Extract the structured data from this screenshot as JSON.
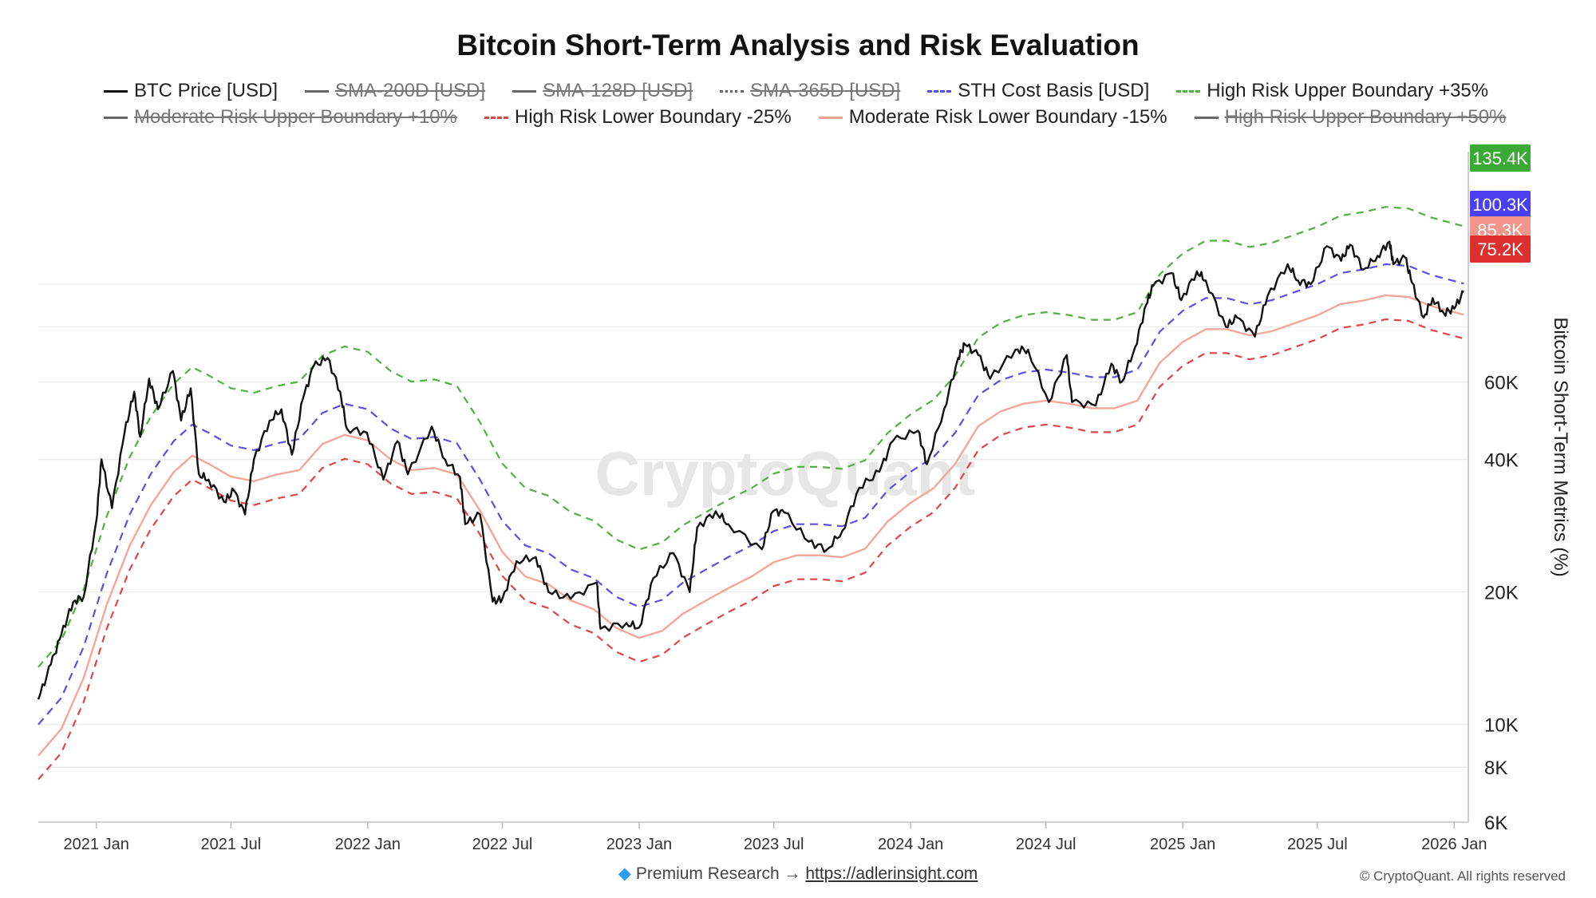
{
  "title": "Bitcoin Short-Term Analysis and Risk Evaluation",
  "legend": [
    {
      "label": "BTC Price [USD]",
      "color": "#111111",
      "style": "solid",
      "enabled": true
    },
    {
      "label": "SMA-200D [USD]",
      "color": "#666666",
      "style": "solid",
      "enabled": false
    },
    {
      "label": "SMA-128D [USD]",
      "color": "#666666",
      "style": "solid",
      "enabled": false
    },
    {
      "label": "SMA-365D [USD]",
      "color": "#666666",
      "style": "dotted",
      "enabled": false
    },
    {
      "label": "STH Cost Basis [USD]",
      "color": "#5a4fe6",
      "style": "dashed",
      "enabled": true
    },
    {
      "label": "High Risk Upper Boundary +35%",
      "color": "#52b043",
      "style": "dashed",
      "enabled": true
    },
    {
      "label": "Moderate Risk Upper Boundary +10%",
      "color": "#666666",
      "style": "solid",
      "enabled": false
    },
    {
      "label": "High Risk Lower Boundary -25%",
      "color": "#e04545",
      "style": "dashed",
      "enabled": true
    },
    {
      "label": "Moderate Risk Lower Boundary -15%",
      "color": "#f0a090",
      "style": "solid",
      "enabled": true
    },
    {
      "label": "High Risk Upper Boundary +50%",
      "color": "#666666",
      "style": "solid",
      "enabled": false
    }
  ],
  "watermark": "CryptoQuant",
  "footer": {
    "text": "Premium Research →",
    "link": "https://adlerinsight.com"
  },
  "copyright": "© CryptoQuant. All rights reserved",
  "chart_data": {
    "type": "line",
    "title": "Bitcoin Short-Term Analysis and Risk Evaluation",
    "ylabel": "Bitcoin Short-Term Metrics (%)",
    "yscale": "log",
    "ylim": [
      6000,
      200000
    ],
    "xlim": [
      "2020-10-15",
      "2026-01-20"
    ],
    "y_ticks": [
      {
        "value": 6000,
        "label": "6K"
      },
      {
        "value": 8000,
        "label": "8K"
      },
      {
        "value": 10000,
        "label": "10K"
      },
      {
        "value": 20000,
        "label": "20K"
      },
      {
        "value": 40000,
        "label": "40K"
      },
      {
        "value": 60000,
        "label": "60K"
      }
    ],
    "x_ticks": [
      {
        "date": "2021-01-01",
        "label": "2021 Jan"
      },
      {
        "date": "2021-07-01",
        "label": "2021 Jul"
      },
      {
        "date": "2022-01-01",
        "label": "2022 Jan"
      },
      {
        "date": "2022-07-01",
        "label": "2022 Jul"
      },
      {
        "date": "2023-01-01",
        "label": "2023 Jan"
      },
      {
        "date": "2023-07-01",
        "label": "2023 Jul"
      },
      {
        "date": "2024-01-01",
        "label": "2024 Jan"
      },
      {
        "date": "2024-07-01",
        "label": "2024 Jul"
      },
      {
        "date": "2025-01-01",
        "label": "2025 Jan"
      },
      {
        "date": "2025-07-01",
        "label": "2025 Jul"
      },
      {
        "date": "2026-01-01",
        "label": "2026 Jan"
      }
    ],
    "value_badges": [
      {
        "label": "135.4K",
        "value": 135400,
        "color": "#3aaa35"
      },
      {
        "label": "100.3K",
        "value": 100300,
        "color": "#4b3ff0"
      },
      {
        "label": "85.3K",
        "value": 85300,
        "color": "#f3958a"
      },
      {
        "label": "75.2K",
        "value": 75200,
        "color": "#de2f2f"
      }
    ],
    "multipliers": {
      "high_upper": 1.35,
      "moderate_lower": 0.85,
      "high_lower": 0.75
    },
    "series": [
      {
        "name": "BTC Price [USD]",
        "color": "#111111",
        "dash": "",
        "points": [
          [
            "2020-10-15",
            11400
          ],
          [
            "2020-11-01",
            13700
          ],
          [
            "2020-11-15",
            16000
          ],
          [
            "2020-12-01",
            19000
          ],
          [
            "2020-12-15",
            19500
          ],
          [
            "2021-01-01",
            29000
          ],
          [
            "2021-01-08",
            40000
          ],
          [
            "2021-01-22",
            31000
          ],
          [
            "2021-02-08",
            46000
          ],
          [
            "2021-02-21",
            57000
          ],
          [
            "2021-03-01",
            45000
          ],
          [
            "2021-03-13",
            61000
          ],
          [
            "2021-03-25",
            52000
          ],
          [
            "2021-04-14",
            63500
          ],
          [
            "2021-04-25",
            49000
          ],
          [
            "2021-05-08",
            58000
          ],
          [
            "2021-05-19",
            37000
          ],
          [
            "2021-06-01",
            36000
          ],
          [
            "2021-06-22",
            32000
          ],
          [
            "2021-07-05",
            34000
          ],
          [
            "2021-07-20",
            30000
          ],
          [
            "2021-08-01",
            40000
          ],
          [
            "2021-08-22",
            49000
          ],
          [
            "2021-09-07",
            52000
          ],
          [
            "2021-09-21",
            41000
          ],
          [
            "2021-10-06",
            55000
          ],
          [
            "2021-10-20",
            65000
          ],
          [
            "2021-11-08",
            68000
          ],
          [
            "2021-11-25",
            57000
          ],
          [
            "2021-12-04",
            47000
          ],
          [
            "2021-12-31",
            46000
          ],
          [
            "2022-01-22",
            36000
          ],
          [
            "2022-02-10",
            44000
          ],
          [
            "2022-02-24",
            37000
          ],
          [
            "2022-03-28",
            47500
          ],
          [
            "2022-04-15",
            40000
          ],
          [
            "2022-05-05",
            36500
          ],
          [
            "2022-05-12",
            28500
          ],
          [
            "2022-06-01",
            30000
          ],
          [
            "2022-06-18",
            19000
          ],
          [
            "2022-07-01",
            19300
          ],
          [
            "2022-07-20",
            23500
          ],
          [
            "2022-08-15",
            24000
          ],
          [
            "2022-09-01",
            20000
          ],
          [
            "2022-10-01",
            19300
          ],
          [
            "2022-11-05",
            21000
          ],
          [
            "2022-11-10",
            16500
          ],
          [
            "2022-12-15",
            17000
          ],
          [
            "2023-01-01",
            16600
          ],
          [
            "2023-01-20",
            21500
          ],
          [
            "2023-02-16",
            24500
          ],
          [
            "2023-03-10",
            20000
          ],
          [
            "2023-03-20",
            28000
          ],
          [
            "2023-04-14",
            30500
          ],
          [
            "2023-05-01",
            28500
          ],
          [
            "2023-06-15",
            25000
          ],
          [
            "2023-06-30",
            30500
          ],
          [
            "2023-07-15",
            30300
          ],
          [
            "2023-08-17",
            26000
          ],
          [
            "2023-09-11",
            25000
          ],
          [
            "2023-10-01",
            27500
          ],
          [
            "2023-10-24",
            34500
          ],
          [
            "2023-11-20",
            37500
          ],
          [
            "2023-12-08",
            44000
          ],
          [
            "2024-01-11",
            46500
          ],
          [
            "2024-01-23",
            39000
          ],
          [
            "2024-02-15",
            52000
          ],
          [
            "2024-03-05",
            68000
          ],
          [
            "2024-03-14",
            73000
          ],
          [
            "2024-04-01",
            69000
          ],
          [
            "2024-04-17",
            61000
          ],
          [
            "2024-05-21",
            71000
          ],
          [
            "2024-06-07",
            71000
          ],
          [
            "2024-07-05",
            54000
          ],
          [
            "2024-07-29",
            69000
          ],
          [
            "2024-08-05",
            54000
          ],
          [
            "2024-09-06",
            53000
          ],
          [
            "2024-09-27",
            66000
          ],
          [
            "2024-10-11",
            60000
          ],
          [
            "2024-10-29",
            72000
          ],
          [
            "2024-11-13",
            90000
          ],
          [
            "2024-11-22",
            99000
          ],
          [
            "2024-12-17",
            106000
          ],
          [
            "2024-12-30",
            92000
          ],
          [
            "2025-01-20",
            107000
          ],
          [
            "2025-02-01",
            102000
          ],
          [
            "2025-02-28",
            80000
          ],
          [
            "2025-03-15",
            84000
          ],
          [
            "2025-04-08",
            76000
          ],
          [
            "2025-04-25",
            94000
          ],
          [
            "2025-05-22",
            111000
          ],
          [
            "2025-06-05",
            102000
          ],
          [
            "2025-06-22",
            100000
          ],
          [
            "2025-07-14",
            122000
          ],
          [
            "2025-08-02",
            113000
          ],
          [
            "2025-08-14",
            123000
          ],
          [
            "2025-09-01",
            108000
          ],
          [
            "2025-09-20",
            116000
          ],
          [
            "2025-10-06",
            125000
          ],
          [
            "2025-10-11",
            111000
          ],
          [
            "2025-10-27",
            115000
          ],
          [
            "2025-11-05",
            101000
          ],
          [
            "2025-11-21",
            84000
          ],
          [
            "2025-12-03",
            93000
          ],
          [
            "2025-12-18",
            86000
          ],
          [
            "2026-01-01",
            88000
          ],
          [
            "2026-01-14",
            96000
          ]
        ]
      },
      {
        "name": "STH Cost Basis [USD]",
        "color": "#5a4fe6",
        "dash": "10 7",
        "points": [
          [
            "2020-10-15",
            10000
          ],
          [
            "2020-11-15",
            11500
          ],
          [
            "2020-12-15",
            15000
          ],
          [
            "2021-01-15",
            22000
          ],
          [
            "2021-02-15",
            30000
          ],
          [
            "2021-03-15",
            37000
          ],
          [
            "2021-04-15",
            44000
          ],
          [
            "2021-05-10",
            48000
          ],
          [
            "2021-06-01",
            46000
          ],
          [
            "2021-07-01",
            43000
          ],
          [
            "2021-08-01",
            42000
          ],
          [
            "2021-09-01",
            43500
          ],
          [
            "2021-10-01",
            44500
          ],
          [
            "2021-11-01",
            51000
          ],
          [
            "2021-12-01",
            53500
          ],
          [
            "2022-01-01",
            52000
          ],
          [
            "2022-02-01",
            47000
          ],
          [
            "2022-03-01",
            44500
          ],
          [
            "2022-04-01",
            45000
          ],
          [
            "2022-05-01",
            43500
          ],
          [
            "2022-06-01",
            36000
          ],
          [
            "2022-07-01",
            29000
          ],
          [
            "2022-08-01",
            25500
          ],
          [
            "2022-09-01",
            24500
          ],
          [
            "2022-10-01",
            22500
          ],
          [
            "2022-11-01",
            21500
          ],
          [
            "2022-12-01",
            19500
          ],
          [
            "2023-01-01",
            18500
          ],
          [
            "2023-02-01",
            19200
          ],
          [
            "2023-03-01",
            21000
          ],
          [
            "2023-04-01",
            22500
          ],
          [
            "2023-05-01",
            24000
          ],
          [
            "2023-06-01",
            25500
          ],
          [
            "2023-07-01",
            27500
          ],
          [
            "2023-08-01",
            28500
          ],
          [
            "2023-09-01",
            28500
          ],
          [
            "2023-10-01",
            28200
          ],
          [
            "2023-11-01",
            29500
          ],
          [
            "2023-12-01",
            34000
          ],
          [
            "2024-01-01",
            37500
          ],
          [
            "2024-02-01",
            40500
          ],
          [
            "2024-03-01",
            46000
          ],
          [
            "2024-04-01",
            56000
          ],
          [
            "2024-05-01",
            60500
          ],
          [
            "2024-06-01",
            63000
          ],
          [
            "2024-07-01",
            64000
          ],
          [
            "2024-08-01",
            63000
          ],
          [
            "2024-09-01",
            61500
          ],
          [
            "2024-10-01",
            61500
          ],
          [
            "2024-11-01",
            64000
          ],
          [
            "2024-12-01",
            78000
          ],
          [
            "2025-01-01",
            87000
          ],
          [
            "2025-02-01",
            93000
          ],
          [
            "2025-03-01",
            93000
          ],
          [
            "2025-04-01",
            90000
          ],
          [
            "2025-05-01",
            92000
          ],
          [
            "2025-06-01",
            96000
          ],
          [
            "2025-07-01",
            100000
          ],
          [
            "2025-08-01",
            106000
          ],
          [
            "2025-09-01",
            108000
          ],
          [
            "2025-10-01",
            111000
          ],
          [
            "2025-11-01",
            110000
          ],
          [
            "2025-12-01",
            105000
          ],
          [
            "2026-01-14",
            100300
          ]
        ]
      }
    ]
  }
}
